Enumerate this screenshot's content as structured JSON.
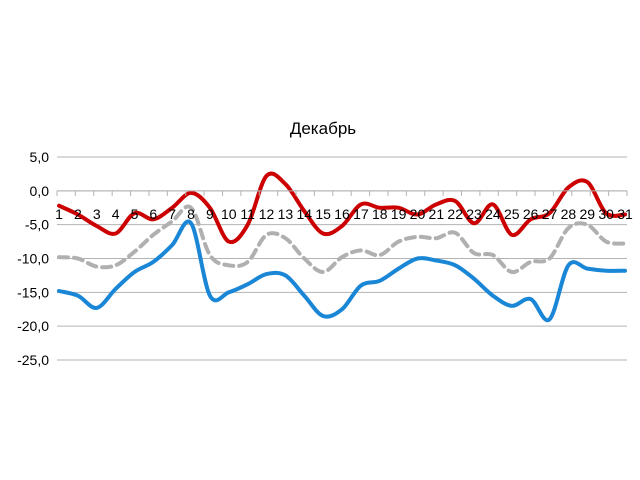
{
  "chart_data": {
    "type": "line",
    "title": "Декабрь",
    "xlabel": "",
    "ylabel": "",
    "ylim": [
      -25,
      5
    ],
    "yticks": [
      5,
      0,
      -5,
      -10,
      -15,
      -20,
      -25
    ],
    "ytick_labels": [
      "5,0",
      "0,0",
      "-5,0",
      "-10,0",
      "-15,0",
      "-20,0",
      "-25,0"
    ],
    "grid": true,
    "legend": "none",
    "categories": [
      "1",
      "2",
      "3",
      "4",
      "5",
      "6",
      "7",
      "8",
      "9",
      "10",
      "11",
      "12",
      "13",
      "14",
      "15",
      "16",
      "17",
      "18",
      "19",
      "20",
      "21",
      "22",
      "23",
      "24",
      "25",
      "26",
      "27",
      "28",
      "29",
      "30",
      "31"
    ],
    "series": [
      {
        "color": "#cc0000",
        "style": "solid",
        "values": [
          -2.2,
          -3.5,
          -5.2,
          -6.3,
          -3.3,
          -4.2,
          -2.5,
          -0.3,
          -2.5,
          -7.5,
          -5.0,
          2.2,
          1.0,
          -3.0,
          -6.3,
          -5.2,
          -2.0,
          -2.5,
          -2.5,
          -3.5,
          -2.0,
          -1.5,
          -4.8,
          -2.0,
          -6.5,
          -4.2,
          -3.3,
          0.5,
          1.3,
          -3.3,
          -3.5
        ]
      },
      {
        "color": "#b0b0b0",
        "style": "dashed",
        "values": [
          -9.8,
          -10.0,
          -11.2,
          -11.0,
          -9.0,
          -6.5,
          -4.5,
          -2.5,
          -9.5,
          -11.0,
          -10.5,
          -6.5,
          -7.0,
          -10.0,
          -12.0,
          -9.8,
          -8.8,
          -9.5,
          -7.5,
          -6.8,
          -7.0,
          -6.2,
          -9.2,
          -9.5,
          -12.0,
          -10.5,
          -10.0,
          -5.5,
          -5.0,
          -7.5,
          -7.8
        ]
      },
      {
        "color": "#1a86d6",
        "style": "solid",
        "values": [
          -14.8,
          -15.5,
          -17.3,
          -14.5,
          -12.0,
          -10.5,
          -8.0,
          -4.8,
          -15.5,
          -15.0,
          -13.8,
          -12.3,
          -12.5,
          -15.5,
          -18.5,
          -17.5,
          -14.0,
          -13.3,
          -11.5,
          -10.0,
          -10.3,
          -11.0,
          -13.0,
          -15.5,
          -17.0,
          -16.0,
          -19.0,
          -11.0,
          -11.5,
          -11.8,
          -11.8
        ]
      }
    ]
  }
}
